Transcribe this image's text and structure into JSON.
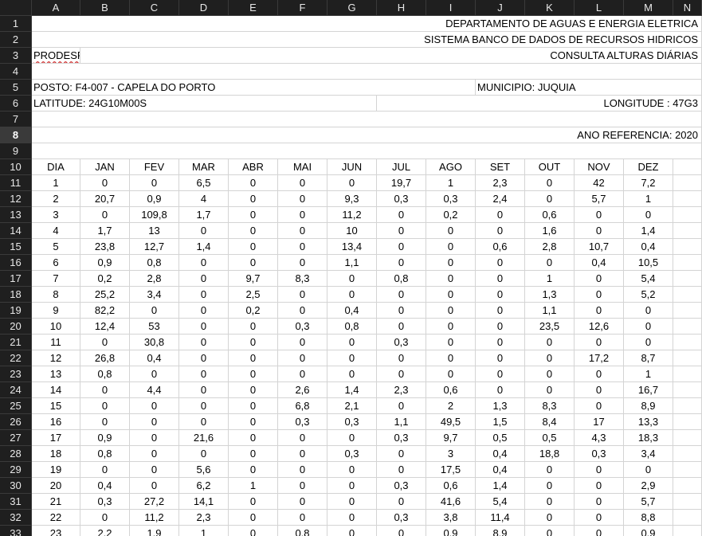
{
  "columns": [
    "A",
    "B",
    "C",
    "D",
    "E",
    "F",
    "G",
    "H",
    "I",
    "J",
    "K",
    "L",
    "M",
    "N"
  ],
  "selected_row": 8,
  "header": {
    "r1": "DEPARTAMENTO DE AGUAS E ENERGIA ELETRICA",
    "r2": "SISTEMA BANCO DE DADOS DE RECURSOS HIDRICOS",
    "r3_left": "PRODESP",
    "r3_right": "CONSULTA ALTURAS DIÁRIAS",
    "r5_left": "POSTO: F4-007 - CAPELA DO PORTO",
    "r5_right": "MUNICIPIO: JUQUIA",
    "r6_left": "LATITUDE: 24G10M00S",
    "r6_right": "LONGITUDE : 47G3",
    "r8_right": "ANO REFERENCIA: 2020"
  },
  "table_headers": [
    "DIA",
    "JAN",
    "FEV",
    "MAR",
    "ABR",
    "MAI",
    "JUN",
    "JUL",
    "AGO",
    "SET",
    "OUT",
    "NOV",
    "DEZ"
  ],
  "table_rows": [
    [
      "1",
      "0",
      "0",
      "6,5",
      "0",
      "0",
      "0",
      "19,7",
      "1",
      "2,3",
      "0",
      "42",
      "7,2"
    ],
    [
      "2",
      "20,7",
      "0,9",
      "4",
      "0",
      "0",
      "9,3",
      "0,3",
      "0,3",
      "2,4",
      "0",
      "5,7",
      "1"
    ],
    [
      "3",
      "0",
      "109,8",
      "1,7",
      "0",
      "0",
      "11,2",
      "0",
      "0,2",
      "0",
      "0,6",
      "0",
      "0"
    ],
    [
      "4",
      "1,7",
      "13",
      "0",
      "0",
      "0",
      "10",
      "0",
      "0",
      "0",
      "1,6",
      "0",
      "1,4"
    ],
    [
      "5",
      "23,8",
      "12,7",
      "1,4",
      "0",
      "0",
      "13,4",
      "0",
      "0",
      "0,6",
      "2,8",
      "10,7",
      "0,4"
    ],
    [
      "6",
      "0,9",
      "0,8",
      "0",
      "0",
      "0",
      "1,1",
      "0",
      "0",
      "0",
      "0",
      "0,4",
      "10,5"
    ],
    [
      "7",
      "0,2",
      "2,8",
      "0",
      "9,7",
      "8,3",
      "0",
      "0,8",
      "0",
      "0",
      "1",
      "0",
      "5,4"
    ],
    [
      "8",
      "25,2",
      "3,4",
      "0",
      "2,5",
      "0",
      "0",
      "0",
      "0",
      "0",
      "1,3",
      "0",
      "5,2"
    ],
    [
      "9",
      "82,2",
      "0",
      "0",
      "0,2",
      "0",
      "0,4",
      "0",
      "0",
      "0",
      "1,1",
      "0",
      "0"
    ],
    [
      "10",
      "12,4",
      "53",
      "0",
      "0",
      "0,3",
      "0,8",
      "0",
      "0",
      "0",
      "23,5",
      "12,6",
      "0"
    ],
    [
      "11",
      "0",
      "30,8",
      "0",
      "0",
      "0",
      "0",
      "0,3",
      "0",
      "0",
      "0",
      "0",
      "0"
    ],
    [
      "12",
      "26,8",
      "0,4",
      "0",
      "0",
      "0",
      "0",
      "0",
      "0",
      "0",
      "0",
      "17,2",
      "8,7"
    ],
    [
      "13",
      "0,8",
      "0",
      "0",
      "0",
      "0",
      "0",
      "0",
      "0",
      "0",
      "0",
      "0",
      "1"
    ],
    [
      "14",
      "0",
      "4,4",
      "0",
      "0",
      "2,6",
      "1,4",
      "2,3",
      "0,6",
      "0",
      "0",
      "0",
      "16,7"
    ],
    [
      "15",
      "0",
      "0",
      "0",
      "0",
      "6,8",
      "2,1",
      "0",
      "2",
      "1,3",
      "8,3",
      "0",
      "8,9"
    ],
    [
      "16",
      "0",
      "0",
      "0",
      "0",
      "0,3",
      "0,3",
      "1,1",
      "49,5",
      "1,5",
      "8,4",
      "17",
      "13,3"
    ],
    [
      "17",
      "0,9",
      "0",
      "21,6",
      "0",
      "0",
      "0",
      "0,3",
      "9,7",
      "0,5",
      "0,5",
      "4,3",
      "18,3"
    ],
    [
      "18",
      "0,8",
      "0",
      "0",
      "0",
      "0",
      "0,3",
      "0",
      "3",
      "0,4",
      "18,8",
      "0,3",
      "3,4"
    ],
    [
      "19",
      "0",
      "0",
      "5,6",
      "0",
      "0",
      "0",
      "0",
      "17,5",
      "0,4",
      "0",
      "0",
      "0"
    ],
    [
      "20",
      "0,4",
      "0",
      "6,2",
      "1",
      "0",
      "0",
      "0,3",
      "0,6",
      "1,4",
      "0",
      "0",
      "2,9"
    ],
    [
      "21",
      "0,3",
      "27,2",
      "14,1",
      "0",
      "0",
      "0",
      "0",
      "41,6",
      "5,4",
      "0",
      "0",
      "5,7"
    ],
    [
      "22",
      "0",
      "11,2",
      "2,3",
      "0",
      "0",
      "0",
      "0,3",
      "3,8",
      "11,4",
      "0",
      "0",
      "8,8"
    ],
    [
      "23",
      "2,2",
      "1,9",
      "1",
      "0",
      "0,8",
      "0",
      "0",
      "0,9",
      "8,9",
      "0",
      "0",
      "0,9"
    ]
  ]
}
